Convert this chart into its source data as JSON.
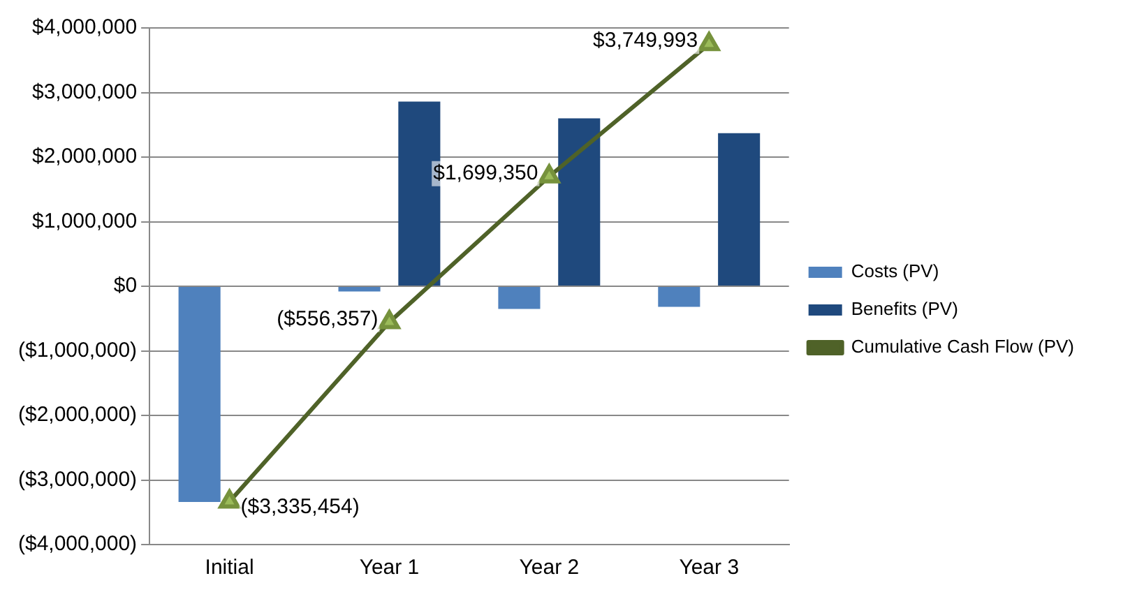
{
  "chart_data": {
    "type": "bar",
    "categories": [
      "Initial",
      "Year 1",
      "Year 2",
      "Year 3"
    ],
    "series": [
      {
        "name": "Costs (PV)",
        "color": "#4f81bd",
        "values": [
          -3340000,
          -80000,
          -350000,
          -320000
        ]
      },
      {
        "name": "Benefits (PV)",
        "color": "#1f497d",
        "values": [
          0,
          2860000,
          2600000,
          2370000
        ]
      },
      {
        "name": "Cumulative Cash Flow (PV)",
        "type": "line",
        "color": "#4f6228",
        "marker": "triangle",
        "values": [
          -3335454,
          -556357,
          1699350,
          3749993
        ],
        "value_labels": [
          "($3,335,454)",
          "($556,357)",
          "$1,699,350",
          "$3,749,993"
        ]
      }
    ],
    "ylim": [
      -4000000,
      4000000
    ],
    "yticks": [
      {
        "value": -4000000,
        "label": "($4,000,000)"
      },
      {
        "value": -3000000,
        "label": "($3,000,000)"
      },
      {
        "value": -2000000,
        "label": "($2,000,000)"
      },
      {
        "value": -1000000,
        "label": "($1,000,000)"
      },
      {
        "value": 0,
        "label": "$0"
      },
      {
        "value": 1000000,
        "label": "$1,000,000"
      },
      {
        "value": 2000000,
        "label": "$2,000,000"
      },
      {
        "value": 3000000,
        "label": "$3,000,000"
      },
      {
        "value": 4000000,
        "label": "$4,000,000"
      }
    ],
    "grid": "y",
    "legend": "right"
  }
}
